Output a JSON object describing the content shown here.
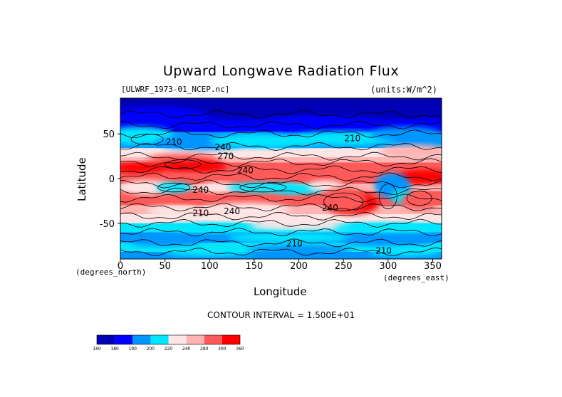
{
  "chart_data": {
    "type": "heatmap",
    "title": "Upward Longwave Radiation Flux",
    "file_label": "[ULWRF_1973-01_NCEP.nc]",
    "units_label": "(units:W/m^2)",
    "xlabel": "Longitude",
    "ylabel": "Latitude",
    "x_unit_label": "(degrees_east)",
    "y_unit_label": "(degrees_north)",
    "xlim": [
      0,
      360
    ],
    "ylim": [
      -90,
      90
    ],
    "x_ticks": [
      0,
      50,
      100,
      150,
      200,
      250,
      300,
      350
    ],
    "y_ticks": [
      -50,
      0,
      50
    ],
    "contour_interval_text": "CONTOUR INTERVAL = 1.500E+01",
    "colorbar": {
      "levels": [
        160,
        180,
        190,
        200,
        220,
        240,
        280,
        300,
        360
      ],
      "colors": [
        "#0000b4",
        "#0000ff",
        "#0096ff",
        "#00e6ff",
        "#ffe6e6",
        "#ffb4b4",
        "#ff5a5a",
        "#ff0000"
      ]
    },
    "contour_labels": [
      {
        "text": "210",
        "lon": 60,
        "lat": 38
      },
      {
        "text": "240",
        "lon": 115,
        "lat": 32
      },
      {
        "text": "270",
        "lon": 118,
        "lat": 22
      },
      {
        "text": "240",
        "lon": 140,
        "lat": 6
      },
      {
        "text": "240",
        "lon": 90,
        "lat": -16
      },
      {
        "text": "210",
        "lon": 260,
        "lat": 42
      },
      {
        "text": "240",
        "lon": 235,
        "lat": -36
      },
      {
        "text": "210",
        "lon": 90,
        "lat": -42
      },
      {
        "text": "240",
        "lon": 125,
        "lat": -40
      },
      {
        "text": "210",
        "lon": 195,
        "lat": -76
      },
      {
        "text": "210",
        "lon": 295,
        "lat": -84
      }
    ],
    "grid": false
  }
}
